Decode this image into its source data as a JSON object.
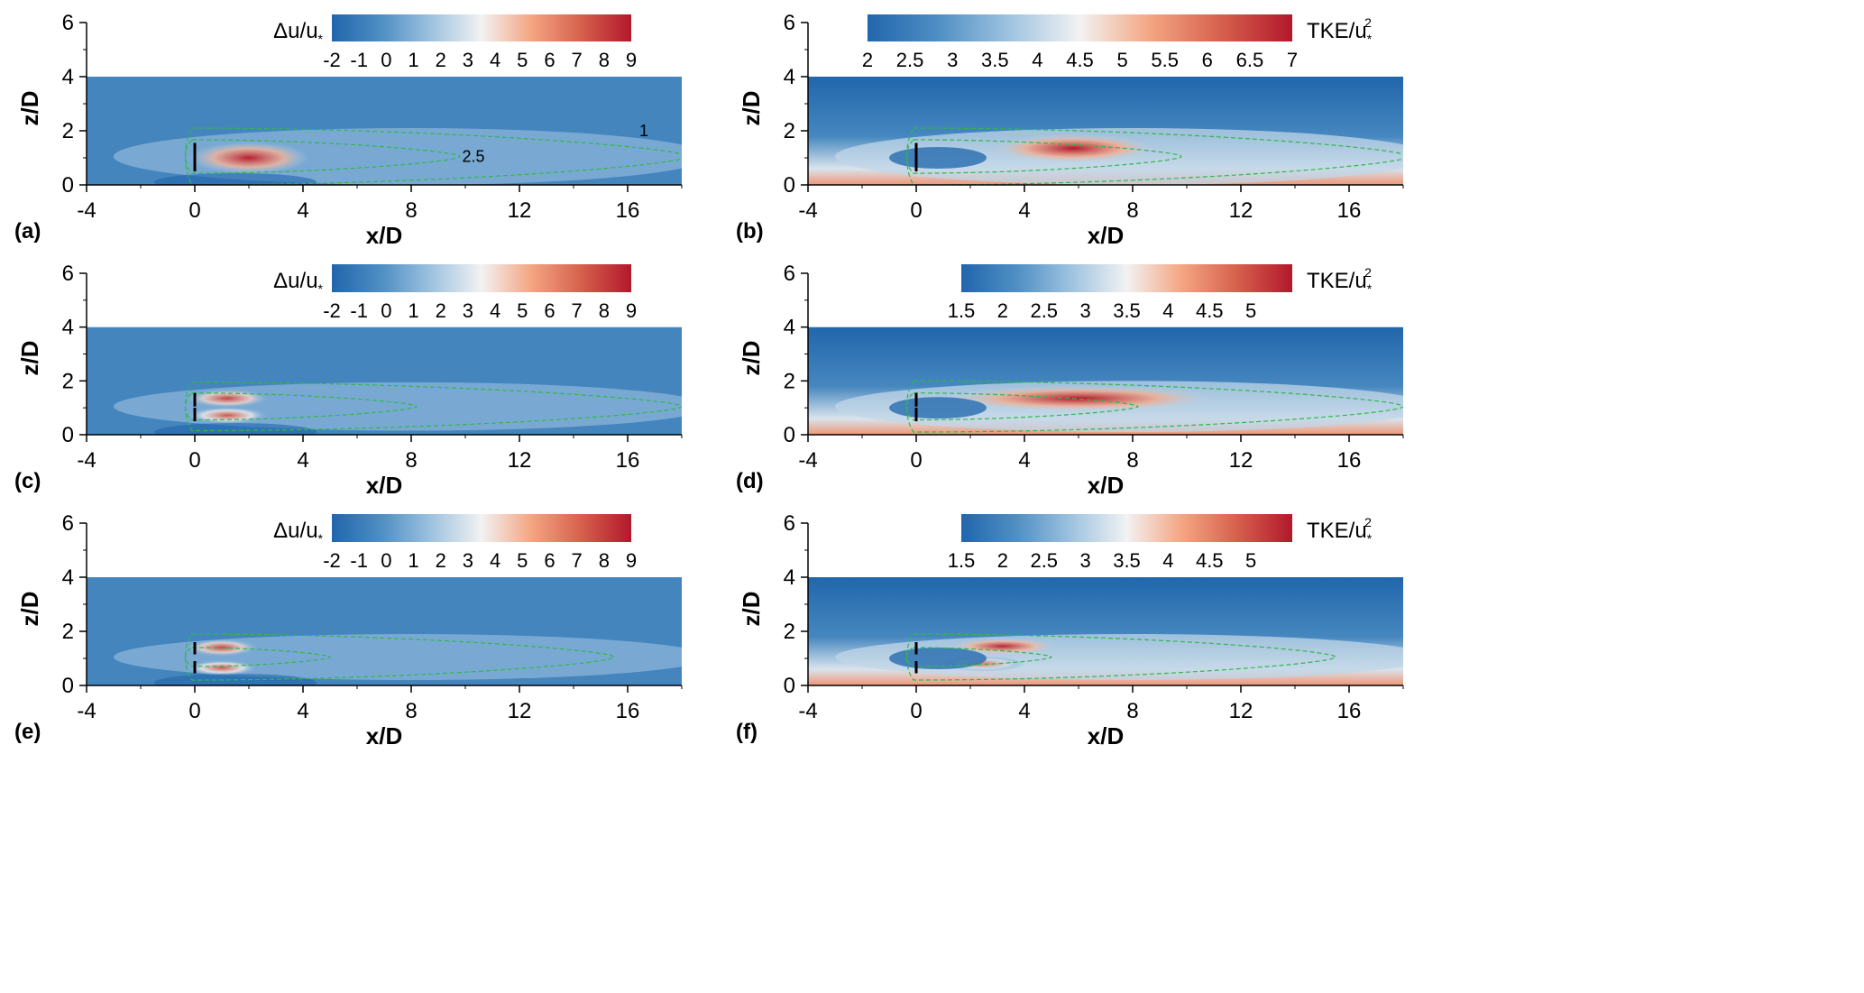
{
  "chart_data": [
    {
      "panel_label": "(a)",
      "type": "heatmap",
      "variable": "du",
      "colorbar_label_base": "Δu/u",
      "colorbar_label_sub": "*",
      "colorbar_label_sup": "",
      "colorbar_ticks": [
        "-2",
        "-1",
        "0",
        "1",
        "2",
        "3",
        "4",
        "5",
        "6",
        "7",
        "8",
        "9"
      ],
      "colorbar_range": [
        -2,
        9
      ],
      "xlabel": "x/D",
      "ylabel": "z/D",
      "xticks": [
        "-4",
        "0",
        "4",
        "8",
        "12",
        "16"
      ],
      "yticks": [
        "0",
        "2",
        "4",
        "6"
      ],
      "xlim": [
        -4,
        18
      ],
      "ylim": [
        0,
        6
      ],
      "domain_top": 4,
      "turbine_config": "single",
      "contour_labels": [
        "1",
        "2.5"
      ],
      "contours": [
        {
          "level": 1,
          "x_end": 18.2,
          "z_half": 1.05
        },
        {
          "level": 2.5,
          "x_end": 9.8,
          "z_half": 0.62
        }
      ],
      "hotspots": [
        {
          "x": 2.0,
          "z": 1.0,
          "value": 8.8,
          "length": 2.2,
          "half_height": 0.45
        }
      ]
    },
    {
      "panel_label": "(b)",
      "type": "heatmap",
      "variable": "tke",
      "colorbar_label_base": "TKE/u",
      "colorbar_label_sub": "*",
      "colorbar_label_sup": "2",
      "colorbar_ticks": [
        "2",
        "2.5",
        "3",
        "3.5",
        "4",
        "4.5",
        "5",
        "5.5",
        "6",
        "6.5",
        "7"
      ],
      "colorbar_range": [
        2,
        7
      ],
      "xlabel": "x/D",
      "ylabel": "z/D",
      "xticks": [
        "-4",
        "0",
        "4",
        "8",
        "12",
        "16"
      ],
      "yticks": [
        "0",
        "2",
        "4",
        "6"
      ],
      "xlim": [
        -4,
        18
      ],
      "ylim": [
        0,
        6
      ],
      "domain_top": 4,
      "turbine_config": "single",
      "contour_labels": [],
      "contours": [
        {
          "level": 1,
          "x_end": 18.2,
          "z_half": 1.05
        },
        {
          "level": 2.5,
          "x_end": 9.8,
          "z_half": 0.62
        }
      ],
      "hotspots": [
        {
          "x": 5.8,
          "z": 1.35,
          "value": 7.0,
          "length": 3.0,
          "half_height": 0.4
        }
      ]
    },
    {
      "panel_label": "(c)",
      "type": "heatmap",
      "variable": "du",
      "colorbar_label_base": "Δu/u",
      "colorbar_label_sub": "*",
      "colorbar_label_sup": "",
      "colorbar_ticks": [
        "-2",
        "-1",
        "0",
        "1",
        "2",
        "3",
        "4",
        "5",
        "6",
        "7",
        "8",
        "9"
      ],
      "colorbar_range": [
        -2,
        9
      ],
      "xlabel": "x/D",
      "ylabel": "z/D",
      "xticks": [
        "-4",
        "0",
        "4",
        "8",
        "12",
        "16"
      ],
      "yticks": [
        "0",
        "2",
        "4",
        "6"
      ],
      "xlim": [
        -4,
        18
      ],
      "ylim": [
        0,
        6
      ],
      "domain_top": 4,
      "turbine_config": "single-split",
      "contour_labels": [],
      "contours": [
        {
          "level": 1,
          "x_end": 18.0,
          "z_half": 0.9
        },
        {
          "level": 2.5,
          "x_end": 8.2,
          "z_half": 0.5
        }
      ],
      "hotspots": [
        {
          "x": 1.2,
          "z": 1.35,
          "value": 8.0,
          "length": 1.5,
          "half_height": 0.2
        },
        {
          "x": 1.2,
          "z": 0.72,
          "value": 7.5,
          "length": 1.5,
          "half_height": 0.18
        }
      ]
    },
    {
      "panel_label": "(d)",
      "type": "heatmap",
      "variable": "tke",
      "colorbar_label_base": "TKE/u",
      "colorbar_label_sub": "*",
      "colorbar_label_sup": "2",
      "colorbar_ticks": [
        "1.5",
        "2",
        "2.5",
        "3",
        "3.5",
        "4",
        "4.5",
        "5"
      ],
      "colorbar_range": [
        1.5,
        5.5
      ],
      "xlabel": "x/D",
      "ylabel": "z/D",
      "xticks": [
        "-4",
        "0",
        "4",
        "8",
        "12",
        "16"
      ],
      "yticks": [
        "0",
        "2",
        "4",
        "6"
      ],
      "xlim": [
        -4,
        18
      ],
      "ylim": [
        0,
        6
      ],
      "domain_top": 4,
      "turbine_config": "single-split",
      "contour_labels": [],
      "contours": [
        {
          "level": 1,
          "x_end": 18.0,
          "z_half": 0.95
        },
        {
          "level": 2.5,
          "x_end": 8.2,
          "z_half": 0.5
        }
      ],
      "hotspots": [
        {
          "x": 6.0,
          "z": 1.35,
          "value": 5.5,
          "length": 5.0,
          "half_height": 0.35
        }
      ]
    },
    {
      "panel_label": "(e)",
      "type": "heatmap",
      "variable": "du",
      "colorbar_label_base": "Δu/u",
      "colorbar_label_sub": "*",
      "colorbar_label_sup": "",
      "colorbar_ticks": [
        "-2",
        "-1",
        "0",
        "1",
        "2",
        "3",
        "4",
        "5",
        "6",
        "7",
        "8",
        "9"
      ],
      "colorbar_range": [
        -2,
        9
      ],
      "xlabel": "x/D",
      "ylabel": "z/D",
      "xticks": [
        "-4",
        "0",
        "4",
        "8",
        "12",
        "16"
      ],
      "yticks": [
        "0",
        "2",
        "4",
        "6"
      ],
      "xlim": [
        -4,
        18
      ],
      "ylim": [
        0,
        6
      ],
      "domain_top": 4,
      "turbine_config": "dual",
      "contour_labels": [],
      "contours": [
        {
          "level": 1,
          "x_end": 15.5,
          "z_half": 0.85
        },
        {
          "level": 2.5,
          "x_end": 5.0,
          "z_half": 0.35
        }
      ],
      "hotspots": [
        {
          "x": 1.0,
          "z": 1.4,
          "value": 8.0,
          "length": 1.3,
          "half_height": 0.18
        },
        {
          "x": 1.0,
          "z": 0.65,
          "value": 7.5,
          "length": 1.3,
          "half_height": 0.15
        }
      ]
    },
    {
      "panel_label": "(f)",
      "type": "heatmap",
      "variable": "tke",
      "colorbar_label_base": "TKE/u",
      "colorbar_label_sub": "*",
      "colorbar_label_sup": "2",
      "colorbar_ticks": [
        "1.5",
        "2",
        "2.5",
        "3",
        "3.5",
        "4",
        "4.5",
        "5"
      ],
      "colorbar_range": [
        1.5,
        5.5
      ],
      "xlabel": "x/D",
      "ylabel": "z/D",
      "xticks": [
        "-4",
        "0",
        "4",
        "8",
        "12",
        "16"
      ],
      "yticks": [
        "0",
        "2",
        "4",
        "6"
      ],
      "xlim": [
        -4,
        18
      ],
      "ylim": [
        0,
        6
      ],
      "domain_top": 4,
      "turbine_config": "dual",
      "contour_labels": [],
      "contours": [
        {
          "level": 1,
          "x_end": 15.5,
          "z_half": 0.85
        },
        {
          "level": 2.5,
          "x_end": 5.0,
          "z_half": 0.35
        }
      ],
      "hotspots": [
        {
          "x": 3.2,
          "z": 1.45,
          "value": 5.4,
          "length": 2.0,
          "half_height": 0.18
        },
        {
          "x": 2.5,
          "z": 0.8,
          "value": 4.6,
          "length": 1.5,
          "half_height": 0.15
        }
      ]
    }
  ],
  "colors": {
    "colormap": [
      "#2166ac",
      "#4f8fc4",
      "#9fc3e0",
      "#f2f2f2",
      "#f4a582",
      "#d6604d",
      "#b2182b"
    ],
    "contour": "#2fb84a",
    "axis": "#000000"
  }
}
